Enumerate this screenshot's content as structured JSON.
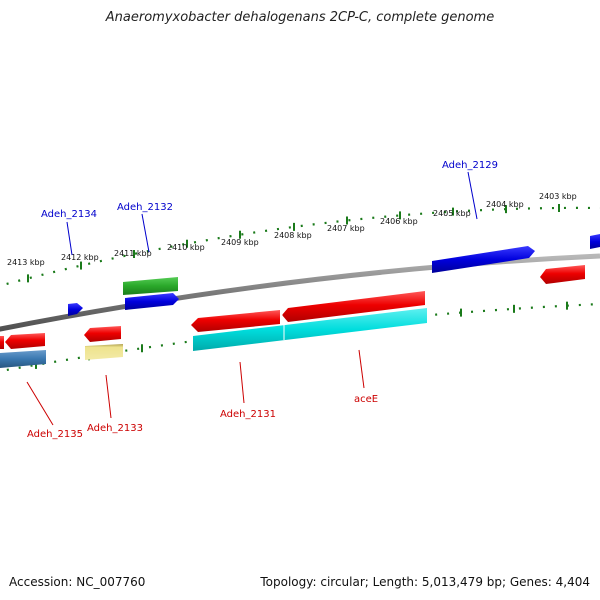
{
  "title": "Anaeromyxobacter dehalogenans 2CP-C, complete genome",
  "footer": {
    "accession": "Accession: NC_007760",
    "summary": "Topology: circular; Length: 5,013,479 bp; Genes: 4,404"
  },
  "colors": {
    "background": "#ffffff",
    "backbone": "#808080",
    "ticks": "#1a7a1a",
    "forward_label": "#0000cc",
    "reverse_label": "#cc0000",
    "gene_red": "#ee0000",
    "gene_blue": "#0000dd",
    "gene_green": "#33bb33",
    "gene_cyan": "#00dddd",
    "gene_steelblue": "#3a78b0",
    "gene_khaki": "#eee38e"
  },
  "scale_labels": [
    "2413 kbp",
    "2412 kbp",
    "2411 kbp",
    "2410 kbp",
    "2409 kbp",
    "2408 kbp",
    "2407 kbp",
    "2406 kbp",
    "2405 kbp",
    "2404 kbp",
    "2403 kbp"
  ],
  "gene_labels": {
    "forward": [
      "Adeh_2134",
      "Adeh_2132",
      "Adeh_2129"
    ],
    "reverse": [
      "Adeh_2135",
      "Adeh_2133",
      "Adeh_2131",
      "aceE"
    ]
  }
}
